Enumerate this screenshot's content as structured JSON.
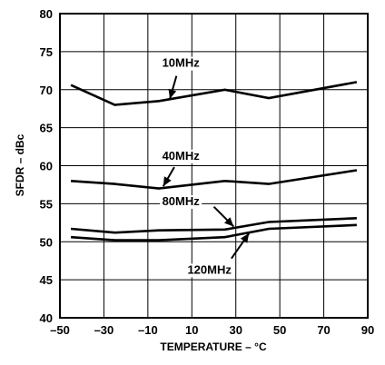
{
  "chart_data": {
    "type": "line",
    "title": "",
    "xlabel": "TEMPERATURE – °C",
    "ylabel": "SFDR – dBc",
    "xlim": [
      -50,
      90
    ],
    "ylim": [
      40,
      80
    ],
    "x_ticks": [
      "–50",
      "–30",
      "–10",
      "10",
      "30",
      "50",
      "70",
      "90"
    ],
    "y_ticks": [
      "40",
      "45",
      "50",
      "55",
      "60",
      "65",
      "70",
      "75",
      "80"
    ],
    "grid": true,
    "series": [
      {
        "name": "10MHz",
        "x": [
          -45,
          -25,
          -5,
          25,
          45,
          85
        ],
        "y": [
          70.6,
          68.0,
          68.5,
          70.0,
          68.9,
          71.0
        ]
      },
      {
        "name": "40MHz",
        "x": [
          -45,
          -25,
          -5,
          25,
          45,
          85
        ],
        "y": [
          58.0,
          57.6,
          57.0,
          58.0,
          57.6,
          59.4
        ]
      },
      {
        "name": "80MHz",
        "x": [
          -45,
          -25,
          -5,
          25,
          45,
          85
        ],
        "y": [
          51.7,
          51.2,
          51.5,
          51.6,
          52.6,
          53.1
        ]
      },
      {
        "name": "120MHz",
        "x": [
          -45,
          -25,
          -5,
          25,
          45,
          85
        ],
        "y": [
          50.6,
          50.2,
          50.2,
          50.6,
          51.7,
          52.2
        ]
      }
    ]
  }
}
